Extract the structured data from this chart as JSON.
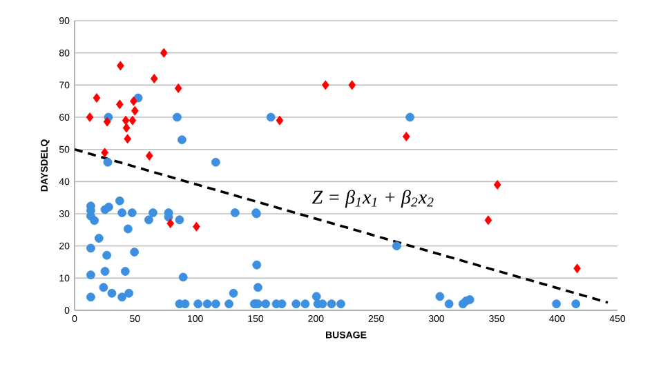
{
  "chart_data": {
    "type": "scatter",
    "xlabel": "BUSAGE",
    "ylabel": "DAYSDELQ",
    "xlim": [
      0,
      450
    ],
    "ylim": [
      0,
      90
    ],
    "xticks": [
      0,
      50,
      100,
      150,
      200,
      250,
      300,
      350,
      400,
      450
    ],
    "yticks": [
      0,
      10,
      20,
      30,
      40,
      50,
      60,
      70,
      80,
      90
    ],
    "grid": "y",
    "annotations": [
      "Z = β$_{1}$x$_{1}$ + β$_{2}$x$_{2}$"
    ],
    "series": [
      {
        "marker": "circle",
        "color": "#3d8fe0",
        "x": [
          52.7,
          28,
          85,
          89,
          27.5,
          117,
          13.4,
          13.4,
          13.4,
          16.4,
          25.2,
          28.3,
          37.4,
          39.3,
          47.7,
          44.3,
          49.6,
          61.5,
          65,
          77.9,
          77.9,
          87,
          133,
          150.4,
          20.2,
          13.4,
          26.7,
          13.4,
          25.2,
          42,
          90,
          24,
          30.9,
          39.3,
          45,
          13.4,
          151,
          152,
          87,
          91.6,
          102.3,
          110,
          117,
          128,
          149,
          152,
          131.7,
          162.7,
          278,
          150.8,
          267,
          150,
          158.4,
          167.2,
          171.8,
          183.6,
          191.2,
          201.6,
          205.5,
          213,
          220.7,
          200.5,
          302.8,
          310.4,
          321.9,
          324.5,
          327.6,
          399.4,
          415.5
        ],
        "values": [
          66,
          60,
          60,
          53,
          46,
          46,
          32.4,
          31,
          29.3,
          27.9,
          31.3,
          32.1,
          34,
          30.3,
          30.3,
          25.3,
          18.1,
          28.1,
          30.3,
          30.3,
          29,
          28.1,
          30.3,
          30.3,
          22.4,
          19.3,
          17.1,
          11,
          12.1,
          12.1,
          10.3,
          7.1,
          5.3,
          4.1,
          5.3,
          4.1,
          14.1,
          7.1,
          2,
          2,
          2,
          2,
          2,
          2,
          2,
          2,
          5.3,
          60,
          60,
          30,
          20,
          2,
          2,
          2,
          2,
          2,
          2,
          2,
          2,
          2,
          2,
          4.3,
          4.3,
          2,
          2,
          2.9,
          3.3,
          2,
          2
        ]
      },
      {
        "marker": "diamond",
        "color": "#ff0000",
        "x": [
          12.6,
          18.3,
          25,
          38,
          27,
          37.4,
          48.9,
          50,
          42.4,
          48,
          43,
          43.9,
          66,
          74,
          86,
          62,
          79.4,
          101,
          208,
          230,
          170,
          275,
          350.5,
          342.9,
          416.6
        ],
        "values": [
          60,
          66,
          49,
          76,
          58.6,
          64,
          65,
          62,
          59,
          59,
          56.7,
          53.3,
          72,
          80,
          69,
          48,
          27,
          26,
          70,
          70,
          59,
          54,
          39,
          28,
          13
        ]
      },
      {
        "type": "line",
        "marker": "none",
        "line_style": "dashed",
        "color": "#000000",
        "x": [
          0,
          442
        ],
        "values": [
          50,
          2.4
        ]
      }
    ]
  }
}
